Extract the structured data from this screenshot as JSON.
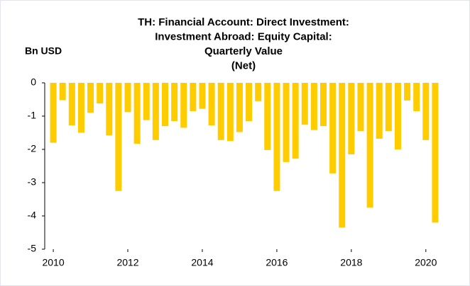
{
  "chart_data": {
    "type": "bar",
    "title": [
      "TH: Financial Account: Direct Investment:",
      "Investment Abroad: Equity Capital:",
      "Quarterly Value",
      "(Net)"
    ],
    "y_label": "Bn USD",
    "color": "#ffcc00",
    "x": [
      2010,
      2010.25,
      2010.5,
      2010.75,
      2011,
      2011.25,
      2011.5,
      2011.75,
      2012,
      2012.25,
      2012.5,
      2012.75,
      2013,
      2013.25,
      2013.5,
      2013.75,
      2014,
      2014.25,
      2014.5,
      2014.75,
      2015,
      2015.25,
      2015.5,
      2015.75,
      2016,
      2016.25,
      2016.5,
      2016.75,
      2017,
      2017.25,
      2017.5,
      2017.75,
      2018,
      2018.25,
      2018.5,
      2018.75,
      2019,
      2019.25,
      2019.5,
      2019.75,
      2020,
      2020.25
    ],
    "values": [
      -1.8,
      -0.52,
      -1.28,
      -1.5,
      -0.9,
      -0.62,
      -1.58,
      -3.25,
      -0.88,
      -1.83,
      -1.12,
      -1.72,
      -1.3,
      -1.15,
      -1.35,
      -0.85,
      -0.78,
      -1.28,
      -1.72,
      -1.75,
      -1.48,
      -1.15,
      -0.55,
      -2.02,
      -3.25,
      -2.38,
      -2.28,
      -1.26,
      -1.42,
      -1.3,
      -2.72,
      -4.35,
      -2.15,
      -1.45,
      -3.75,
      -1.68,
      -1.45,
      -2.0,
      -0.53,
      -0.85,
      -1.72,
      -4.2
    ],
    "xlim": [
      2009.77,
      2020.48
    ],
    "xticks": [
      2010,
      2012,
      2014,
      2016,
      2018,
      2020
    ],
    "ylim": [
      -5,
      0
    ],
    "yticks": [
      0,
      -1,
      -2,
      -3,
      -4,
      -5
    ]
  }
}
